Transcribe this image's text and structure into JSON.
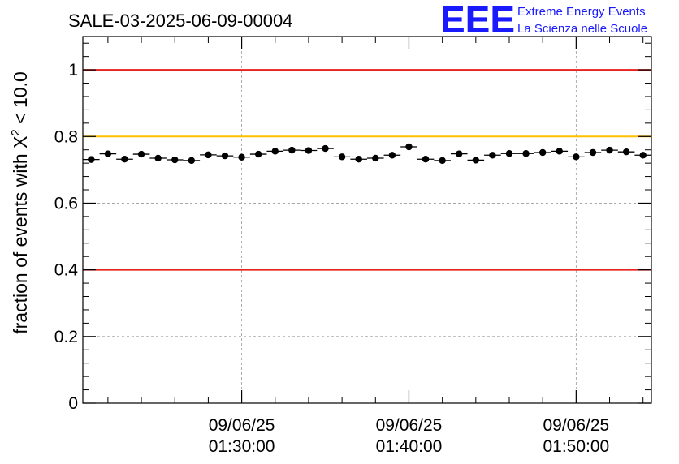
{
  "chart_data": {
    "type": "scatter",
    "title": "SALE-03-2025-06-09-00004",
    "xlabel": "",
    "ylabel_prefix": "fraction of events with ",
    "ylabel_symbol": "X",
    "ylabel_sup": "2",
    "ylabel_suffix": " < 10.0",
    "ylim": [
      0,
      1.1
    ],
    "yticks": [
      0,
      0.2,
      0.4,
      0.6,
      0.8,
      1
    ],
    "ytick_labels": [
      "0",
      "0.2",
      "0.4",
      "0.6",
      "0.8",
      "1"
    ],
    "xlim_minutes": [
      0,
      34
    ],
    "xticks_major": [
      {
        "t": 9.5,
        "date": "09/06/25",
        "time": "01:30:00"
      },
      {
        "t": 19.5,
        "date": "09/06/25",
        "time": "01:40:00"
      },
      {
        "t": 29.5,
        "date": "09/06/25",
        "time": "01:50:00"
      }
    ],
    "grid": true,
    "reference_lines": [
      {
        "y": 1.0,
        "color": "#e8211f"
      },
      {
        "y": 0.8,
        "color": "#ffc000"
      },
      {
        "y": 0.4,
        "color": "#e8211f"
      }
    ],
    "series": [
      {
        "name": "fraction",
        "x": [
          0.5,
          1.5,
          2.5,
          3.5,
          4.5,
          5.5,
          6.5,
          7.5,
          8.5,
          9.5,
          10.5,
          11.5,
          12.5,
          13.5,
          14.5,
          15.5,
          16.5,
          17.5,
          18.5,
          19.5,
          20.5,
          21.5,
          22.5,
          23.5,
          24.5,
          25.5,
          26.5,
          27.5,
          28.5,
          29.5,
          30.5,
          31.5,
          32.5,
          33.5
        ],
        "y": [
          0.731,
          0.748,
          0.732,
          0.747,
          0.735,
          0.73,
          0.728,
          0.745,
          0.742,
          0.738,
          0.747,
          0.756,
          0.759,
          0.758,
          0.764,
          0.739,
          0.732,
          0.735,
          0.744,
          0.769,
          0.732,
          0.728,
          0.748,
          0.729,
          0.744,
          0.749,
          0.749,
          0.752,
          0.756,
          0.739,
          0.752,
          0.759,
          0.754,
          0.744
        ],
        "err": [
          0.008,
          0.008,
          0.008,
          0.008,
          0.008,
          0.008,
          0.008,
          0.008,
          0.008,
          0.008,
          0.008,
          0.008,
          0.008,
          0.008,
          0.008,
          0.008,
          0.008,
          0.008,
          0.008,
          0.008,
          0.008,
          0.008,
          0.008,
          0.008,
          0.008,
          0.008,
          0.008,
          0.008,
          0.008,
          0.008,
          0.008,
          0.008,
          0.008,
          0.008
        ]
      }
    ]
  },
  "logo": {
    "mark": "EEE",
    "line1": "Extreme Energy Events",
    "line2": "La Scienza nelle Scuole",
    "color": "#1a1aff"
  }
}
